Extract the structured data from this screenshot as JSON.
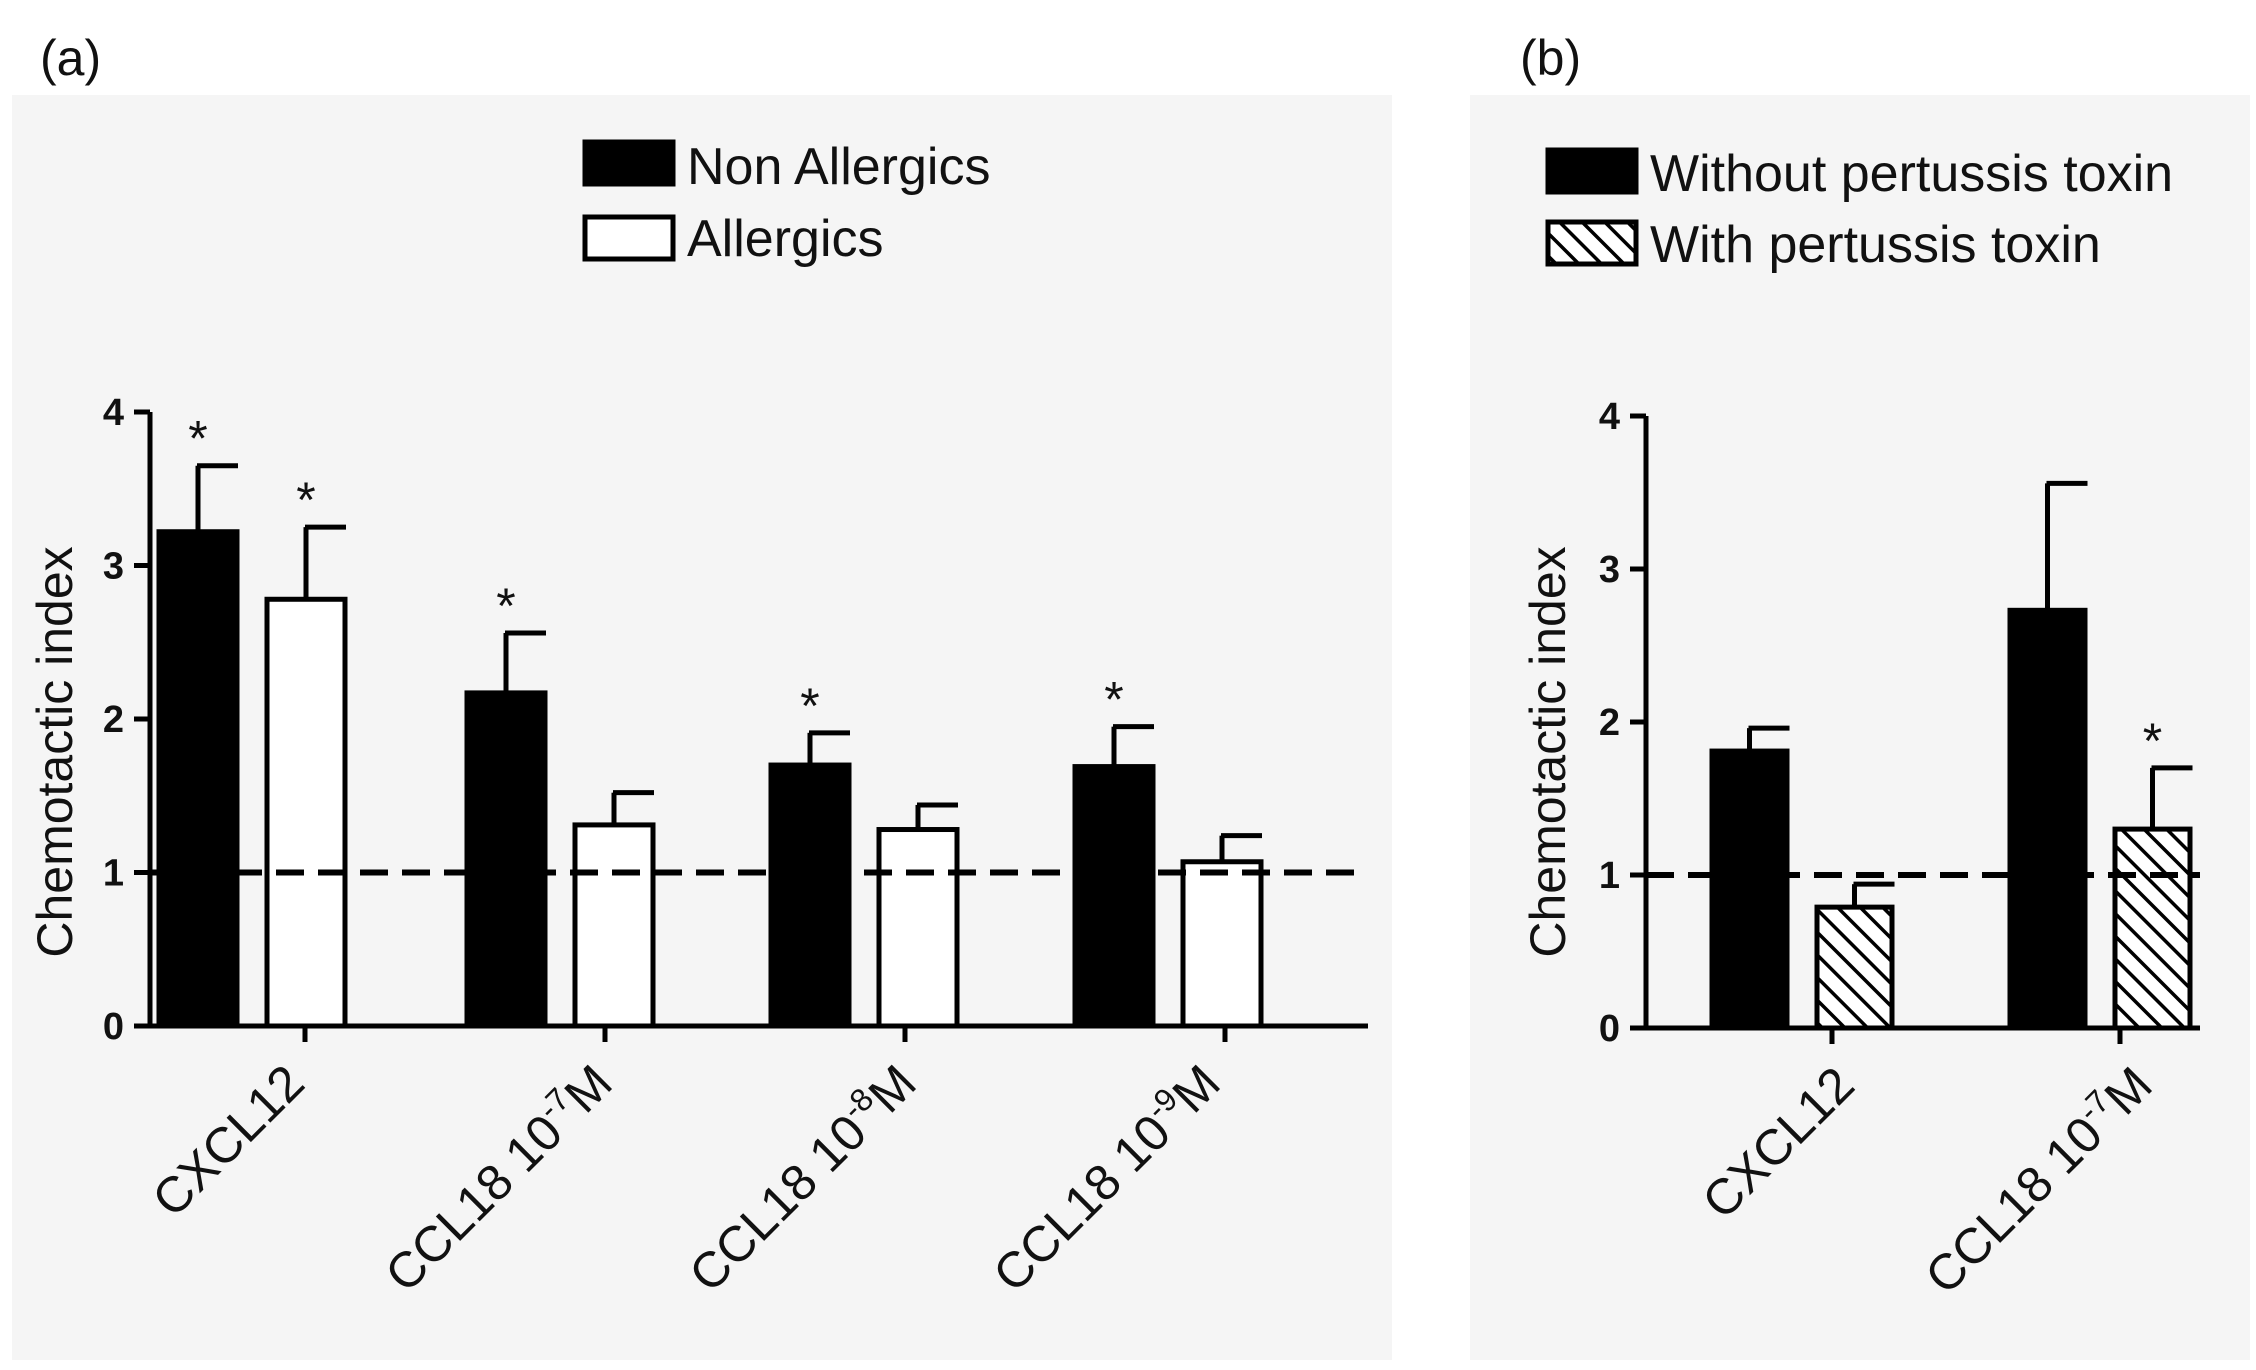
{
  "chart_data": [
    {
      "type": "bar",
      "panel": "(a)",
      "title": "",
      "xlabel": "",
      "ylabel": "Chemotactic index",
      "ylim": [
        0,
        4
      ],
      "yticks": [
        "0",
        "1",
        "2",
        "3",
        "4"
      ],
      "reference_line": 1,
      "categories": [
        {
          "base": "CXCL12",
          "exp": "",
          "unit": ""
        },
        {
          "base": "CCL18 10",
          "exp": "-7",
          "unit": "M"
        },
        {
          "base": "CCL18 10",
          "exp": "-8",
          "unit": "M"
        },
        {
          "base": "CCL18 10",
          "exp": "-9",
          "unit": "M"
        }
      ],
      "series": [
        {
          "name": "Non Allergics",
          "style": "solid",
          "values": [
            3.22,
            2.17,
            1.7,
            1.69
          ],
          "errors": [
            0.43,
            0.39,
            0.21,
            0.26
          ],
          "significant": [
            "*",
            "*",
            "*",
            "*"
          ]
        },
        {
          "name": "Allergics",
          "style": "open",
          "values": [
            2.78,
            1.31,
            1.28,
            1.07
          ],
          "errors": [
            0.47,
            0.21,
            0.16,
            0.17
          ],
          "significant": [
            "*",
            "",
            "",
            ""
          ]
        }
      ],
      "legend_position": "top-right"
    },
    {
      "type": "bar",
      "panel": "(b)",
      "title": "",
      "xlabel": "",
      "ylabel": "Chemotactic index",
      "ylim": [
        0,
        4
      ],
      "yticks": [
        "0",
        "1",
        "2",
        "3",
        "4"
      ],
      "reference_line": 1,
      "categories": [
        {
          "base": "CXCL12",
          "exp": "",
          "unit": ""
        },
        {
          "base": "CCL18 10",
          "exp": "-7",
          "unit": "M"
        }
      ],
      "series": [
        {
          "name": "Without pertussis toxin",
          "style": "solid",
          "values": [
            1.81,
            2.73
          ],
          "errors": [
            0.15,
            0.83
          ],
          "significant": [
            "",
            ""
          ]
        },
        {
          "name": "With pertussis toxin",
          "style": "hatched",
          "values": [
            0.79,
            1.3
          ],
          "errors": [
            0.15,
            0.4
          ],
          "significant": [
            "",
            "*"
          ]
        }
      ],
      "legend_position": "top"
    }
  ],
  "colors": {
    "solid_fill": "#000000",
    "open_fill": "#ffffff",
    "stroke": "#000000",
    "panel_background": "#f5f5f5"
  }
}
